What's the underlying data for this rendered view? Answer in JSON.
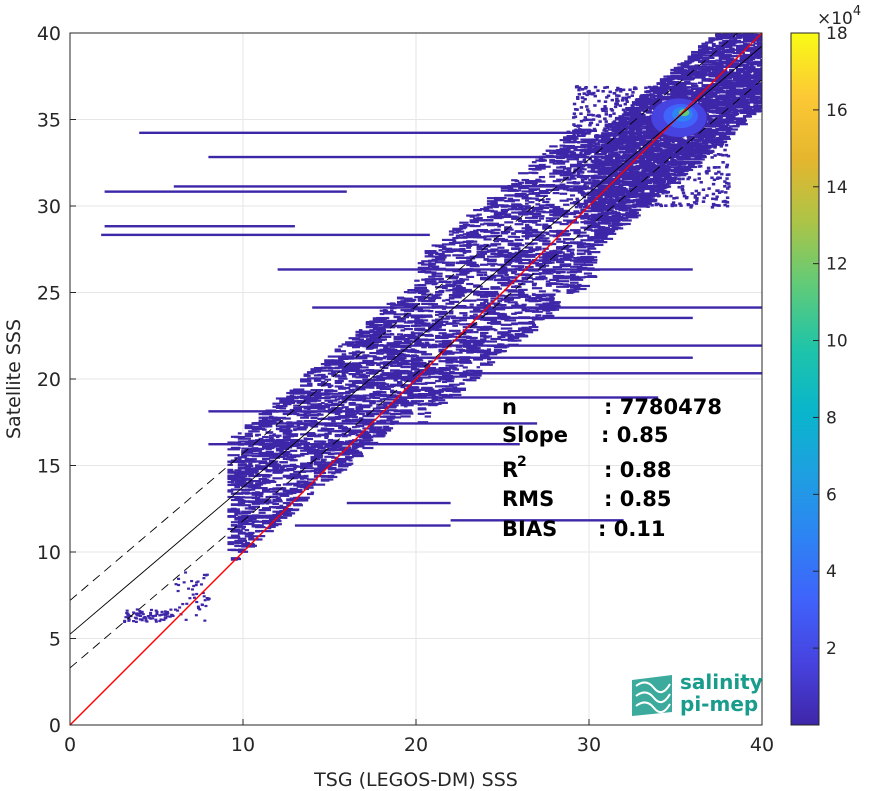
{
  "chart_data": {
    "type": "heatmap",
    "xlabel": "TSG (LEGOS-DM) SSS",
    "ylabel": "Satellite SSS",
    "xlim": [
      0,
      40
    ],
    "ylim": [
      0,
      40
    ],
    "xticks": [
      "0",
      "10",
      "20",
      "30",
      "40"
    ],
    "yticks": [
      "0",
      "5",
      "10",
      "15",
      "20",
      "25",
      "30",
      "35",
      "40"
    ],
    "grid": true,
    "colorbar": {
      "exponent_label": "×10",
      "exponent_power": "4",
      "ticks": [
        "2",
        "4",
        "6",
        "8",
        "10",
        "12",
        "14",
        "16",
        "18"
      ],
      "tick_values": [
        2,
        4,
        6,
        8,
        10,
        12,
        14,
        16,
        18
      ],
      "range": [
        0,
        18
      ],
      "colormap": [
        "#3e26a8",
        "#4743e0",
        "#3f63fb",
        "#2d84f3",
        "#1ea0e0",
        "#09b6cb",
        "#20c4a8",
        "#61cb78",
        "#acc447",
        "#e5b62e",
        "#fcc935",
        "#f9fb15"
      ]
    },
    "lines": [
      {
        "name": "one_to_one",
        "slope": 1,
        "intercept": 0,
        "color": "#ff0000",
        "style": "solid"
      },
      {
        "name": "regression",
        "slope": 0.85,
        "intercept": 5.25,
        "color": "#000000",
        "style": "solid"
      },
      {
        "name": "regression_upper",
        "slope": 0.85,
        "intercept": 7.2,
        "color": "#000000",
        "style": "dashed"
      },
      {
        "name": "regression_lower",
        "slope": 0.85,
        "intercept": 3.3,
        "color": "#000000",
        "style": "dashed"
      }
    ],
    "density_regions": [
      {
        "x": [
          0,
          40
        ],
        "y": [
          0,
          0
        ],
        "note": "scatter cloud along 1:1 line"
      }
    ],
    "stats": [
      {
        "label": "n",
        "value": ": 7780478"
      },
      {
        "label": "Slope",
        "value": ": 0.85"
      },
      {
        "label": "R",
        "sup": "2",
        "value": ": 0.88"
      },
      {
        "label": "RMS",
        "value": ": 0.85"
      },
      {
        "label": "BIAS",
        "value": ": 0.11"
      }
    ]
  },
  "logo": {
    "line1": "salinity",
    "line2": "pi-mep",
    "color": "#1a9c8c"
  }
}
